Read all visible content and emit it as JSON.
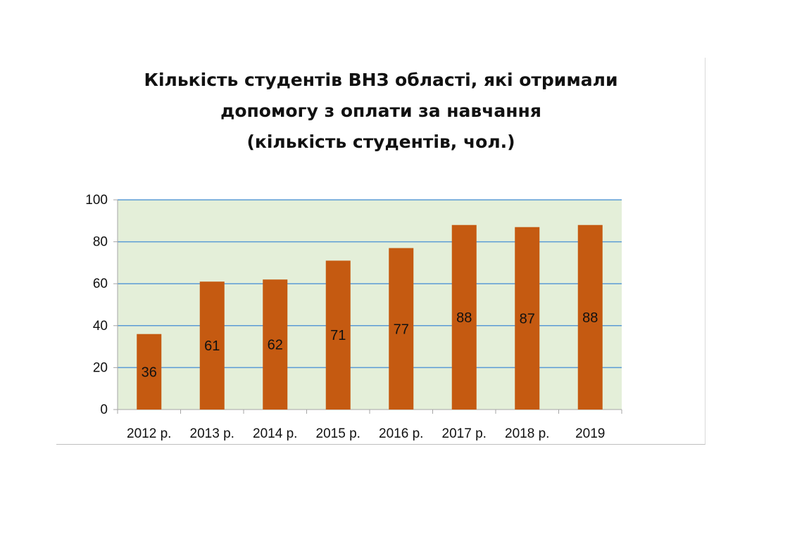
{
  "chart_data": {
    "type": "bar",
    "title_lines": [
      "Кількість студентів ВНЗ області, які отримали",
      "допомогу з оплати за навчання",
      "(кількість студентів, чол.)"
    ],
    "categories": [
      "2012 р.",
      "2013 р.",
      "2014 р.",
      "2015 р.",
      "2016 р.",
      "2017 р.",
      "2018 р.",
      "2019"
    ],
    "values": [
      36,
      61,
      62,
      71,
      77,
      88,
      87,
      88
    ],
    "value_labels": [
      "36",
      "61",
      "62",
      "71",
      "77",
      "88",
      "87",
      "88"
    ],
    "yticks": [
      "0",
      "20",
      "40",
      "60",
      "80",
      "100"
    ],
    "ylim": [
      0,
      100
    ],
    "grid": true,
    "legend": "none",
    "colors": {
      "bar": "#c55a11",
      "plot_background": "#e4efd9",
      "gridline": "#5b9bd5",
      "axis": "#a6a6a6"
    }
  }
}
